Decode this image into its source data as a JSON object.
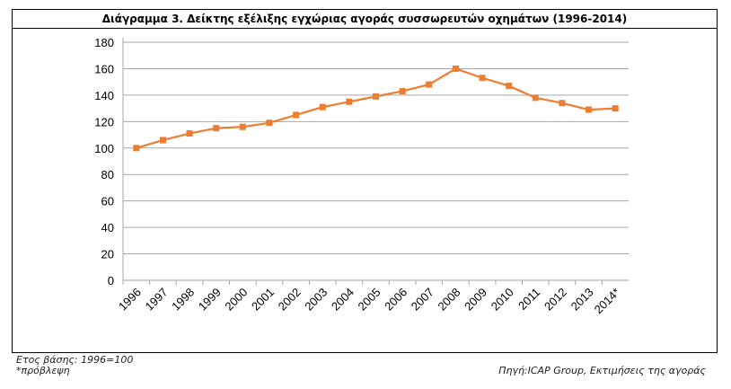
{
  "chart_data": {
    "type": "line",
    "title": "Διάγραμμα 3. Δείκτης εξέλιξης εγχώριας αγοράς συσσωρευτών οχημάτων (1996-2014)",
    "categories": [
      "1996",
      "1997",
      "1998",
      "1999",
      "2000",
      "2001",
      "2002",
      "2003",
      "2004",
      "2005",
      "2006",
      "2007",
      "2008",
      "2009",
      "2010",
      "2011",
      "2012",
      "2013",
      "2014*"
    ],
    "series": [
      {
        "name": "Δείκτης",
        "values": [
          100,
          106,
          111,
          115,
          116,
          119,
          125,
          131,
          135,
          139,
          143,
          148,
          160,
          153,
          147,
          138,
          134,
          129,
          130
        ]
      }
    ],
    "yticks": [
      0,
      20,
      40,
      60,
      80,
      100,
      120,
      140,
      160,
      180
    ],
    "ylim": [
      0,
      180
    ],
    "grid": true,
    "legend": "none",
    "color": "#ed7d31"
  },
  "footer": {
    "base_year": "Ετος βάσης: 1996=100",
    "note": "*πρόβλεψη",
    "source": "Πηγή:ICAP Group, Εκτιμήσεις της αγοράς"
  }
}
